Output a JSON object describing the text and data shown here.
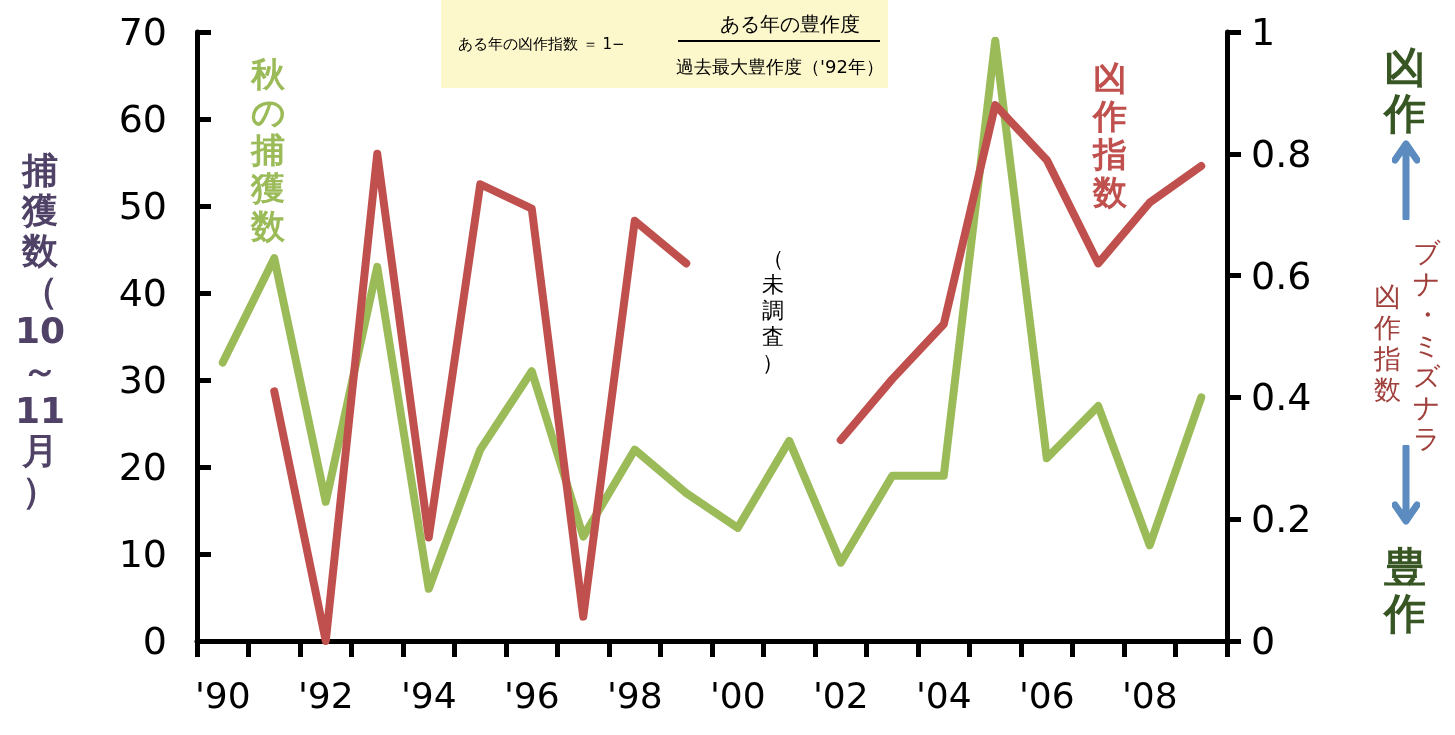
{
  "chart_data": {
    "type": "line",
    "ylabel": "捕獲数（10～11月）",
    "y2label": "ブナ・ミズナラ",
    "categories": [
      "'90",
      null,
      "'92",
      null,
      "'94",
      null,
      "'96",
      null,
      "'98",
      null,
      "'00",
      null,
      "'02",
      null,
      "'04",
      null,
      "'06",
      null,
      "'08",
      null
    ],
    "series": [
      {
        "name": "秋の捕獲数",
        "color": "#9bbb59",
        "values": [
          32,
          44,
          16,
          43,
          6,
          22,
          31,
          12,
          22,
          17,
          13,
          23,
          9,
          19,
          19,
          69,
          21,
          27,
          11,
          28
        ]
      },
      {
        "name": "凶作指数",
        "color": "#c0504d",
        "axis": "y2",
        "values": [
          null,
          0.41,
          0.0,
          0.8,
          0.17,
          0.75,
          0.71,
          0.04,
          0.69,
          0.62,
          null,
          null,
          0.33,
          0.43,
          0.52,
          0.88,
          0.79,
          0.62,
          0.72,
          0.78
        ]
      }
    ],
    "ylim": [
      0,
      70
    ],
    "yticks": [
      0,
      10,
      20,
      30,
      40,
      50,
      60,
      70
    ],
    "y2lim": [
      0,
      1
    ],
    "y2ticks": [
      0,
      0.2,
      0.4,
      0.6,
      0.8,
      1
    ],
    "annotations": [
      "ある年の凶作指数 ＝ 1−",
      "ある年の豊作度",
      "過去最大豊作度（'92年）",
      "（未調査）",
      "凶作",
      "豊作",
      "凶作指数"
    ],
    "line_style": "solid",
    "grid": false
  }
}
